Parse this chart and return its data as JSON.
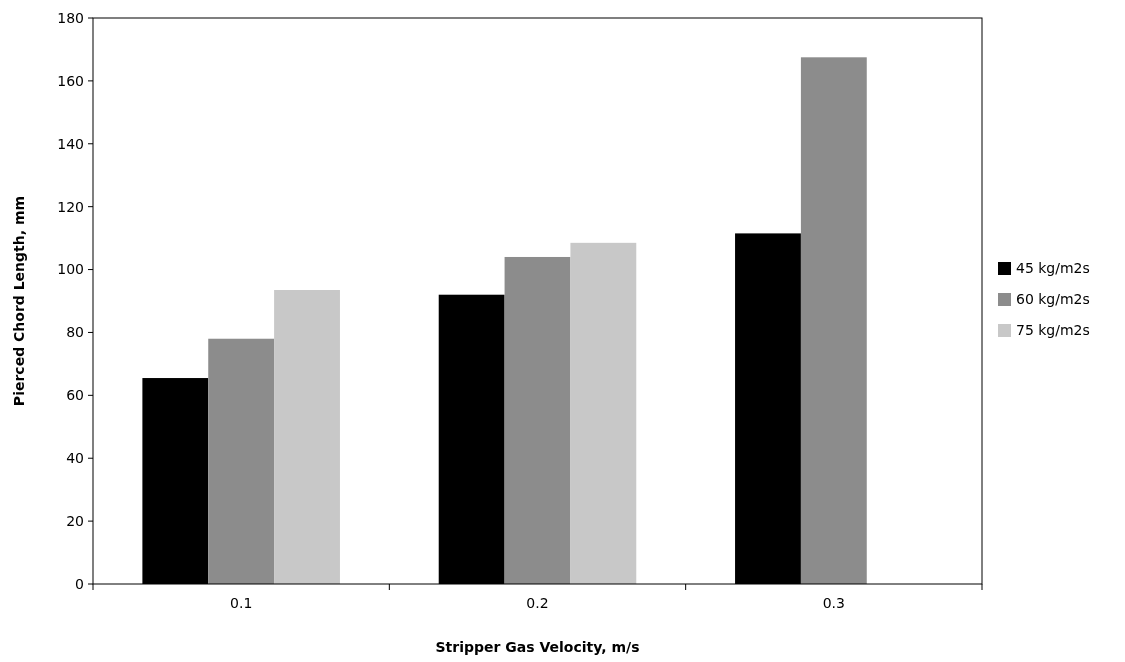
{
  "chart_data": {
    "type": "bar",
    "xlabel": "Stripper Gas Velocity, m/s",
    "ylabel": "Pierced Chord Length, mm",
    "categories": [
      "0.1",
      "0.2",
      "0.3"
    ],
    "series": [
      {
        "name": "45 kg/m2s",
        "color": "#000000",
        "values": [
          65.5,
          92,
          111.5
        ]
      },
      {
        "name": "60 kg/m2s",
        "color": "#8c8c8c",
        "values": [
          78,
          104,
          167.5
        ]
      },
      {
        "name": "75 kg/m2s",
        "color": "#c8c8c8",
        "values": [
          93.5,
          108.5,
          null
        ]
      }
    ],
    "ylim": [
      0,
      180
    ],
    "yticks": [
      0,
      20,
      40,
      60,
      80,
      100,
      120,
      140,
      160,
      180
    ],
    "grid": false,
    "legend": "right"
  }
}
